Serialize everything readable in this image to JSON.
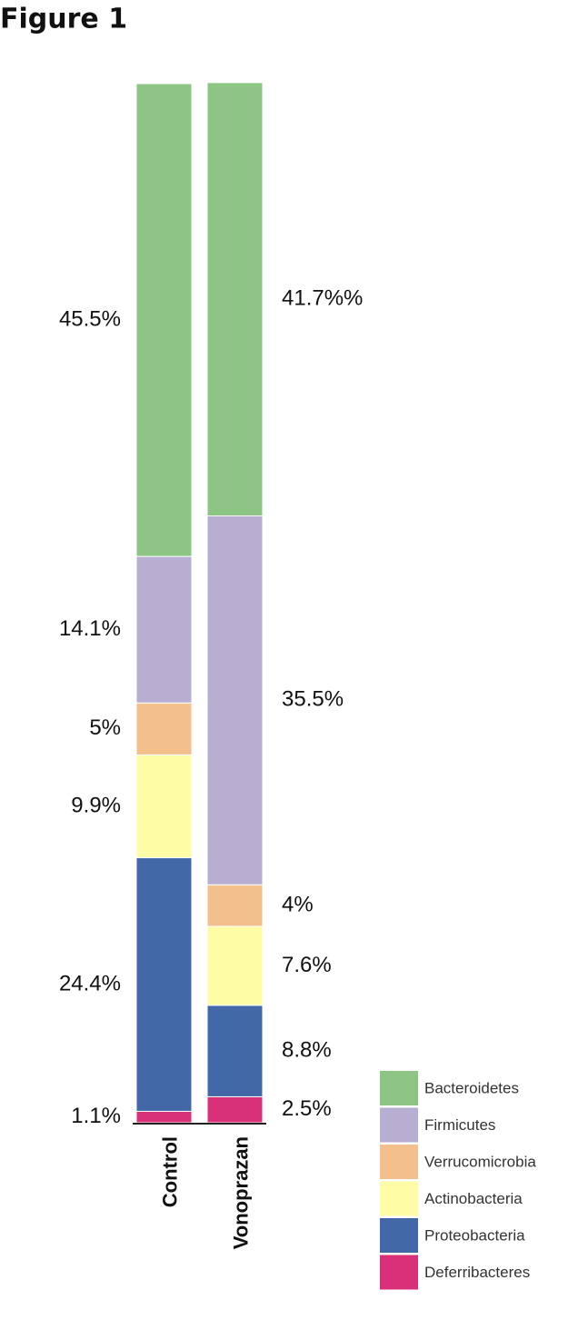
{
  "chart_data": {
    "type": "stacked-bar",
    "title": "Figure 1",
    "categories": [
      "Control",
      "Vonoprazan"
    ],
    "series": [
      {
        "name": "Bacteroidetes",
        "color": "#8dc585",
        "values": [
          45.5,
          41.7
        ],
        "value_labels": [
          "45.5%",
          "41.7%%"
        ]
      },
      {
        "name": "Firmicutes",
        "color": "#b8aed1",
        "values": [
          14.1,
          35.5
        ],
        "value_labels": [
          "14.1%",
          "35.5%"
        ]
      },
      {
        "name": "Verrucomicrobia",
        "color": "#f3bf8c",
        "values": [
          5,
          4
        ],
        "value_labels": [
          "5%",
          "4%"
        ]
      },
      {
        "name": "Actinobacteria",
        "color": "#fefca4",
        "values": [
          9.9,
          7.6
        ],
        "value_labels": [
          "9.9%",
          "7.6%"
        ]
      },
      {
        "name": "Proteobacteria",
        "color": "#4268a8",
        "values": [
          24.4,
          8.8
        ],
        "value_labels": [
          "24.4%",
          "8.8%"
        ]
      },
      {
        "name": "Deferribacteres",
        "color": "#d9307a",
        "values": [
          1.1,
          2.5
        ],
        "value_labels": [
          "1.1%",
          "2.5%"
        ]
      }
    ]
  }
}
